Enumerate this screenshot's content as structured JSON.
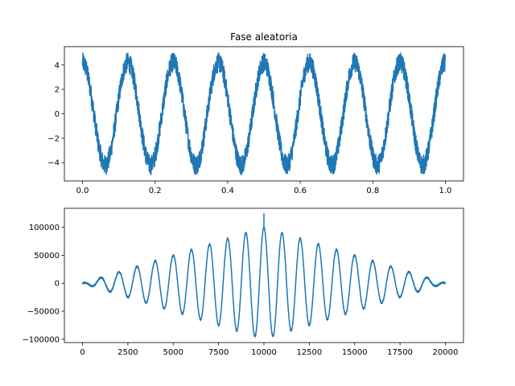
{
  "chart_data": [
    {
      "type": "line",
      "title": "Fase aleatoria",
      "xlabel": "",
      "ylabel": "",
      "xlim": [
        -0.05,
        1.05
      ],
      "ylim": [
        -5.5,
        5.5
      ],
      "xticks": [
        0.0,
        0.2,
        0.4,
        0.6,
        0.8,
        1.0
      ],
      "xtick_labels": [
        "0.0",
        "0.2",
        "0.4",
        "0.6",
        "0.8",
        "1.0"
      ],
      "yticks": [
        -4,
        -2,
        0,
        2,
        4
      ],
      "ytick_labels": [
        "−4",
        "−2",
        "0",
        "2",
        "4"
      ],
      "grid": false,
      "color": "#1f77b4",
      "series": [
        {
          "x_range": [
            0,
            1
          ],
          "carrier_frequency": 8,
          "carrier_amplitude": 4.2,
          "noise_amplitude": 0.8,
          "clip": [
            -5,
            5
          ],
          "sign_at_start": 1
        }
      ]
    },
    {
      "type": "line",
      "title": "",
      "xlabel": "",
      "ylabel": "",
      "xlim": [
        -1000,
        21000
      ],
      "ylim": [
        -106000,
        134000
      ],
      "xticks": [
        0,
        2500,
        5000,
        7500,
        10000,
        12500,
        15000,
        17500,
        20000
      ],
      "xtick_labels": [
        "0",
        "2500",
        "5000",
        "7500",
        "10000",
        "12500",
        "15000",
        "17500",
        "20000"
      ],
      "yticks": [
        -100000,
        -50000,
        0,
        50000,
        100000
      ],
      "ytick_labels": [
        "−100000",
        "−50000",
        "0",
        "50000",
        "100000"
      ],
      "grid": false,
      "color": "#1f77b4",
      "series": [
        {
          "x_range": [
            0,
            20000
          ],
          "oscillation_period": 1000,
          "peak_at": 10000,
          "peak_amplitude": 100000,
          "envelope": "triangular",
          "center_spike_value": 125000,
          "min_value": -97000
        }
      ]
    }
  ]
}
